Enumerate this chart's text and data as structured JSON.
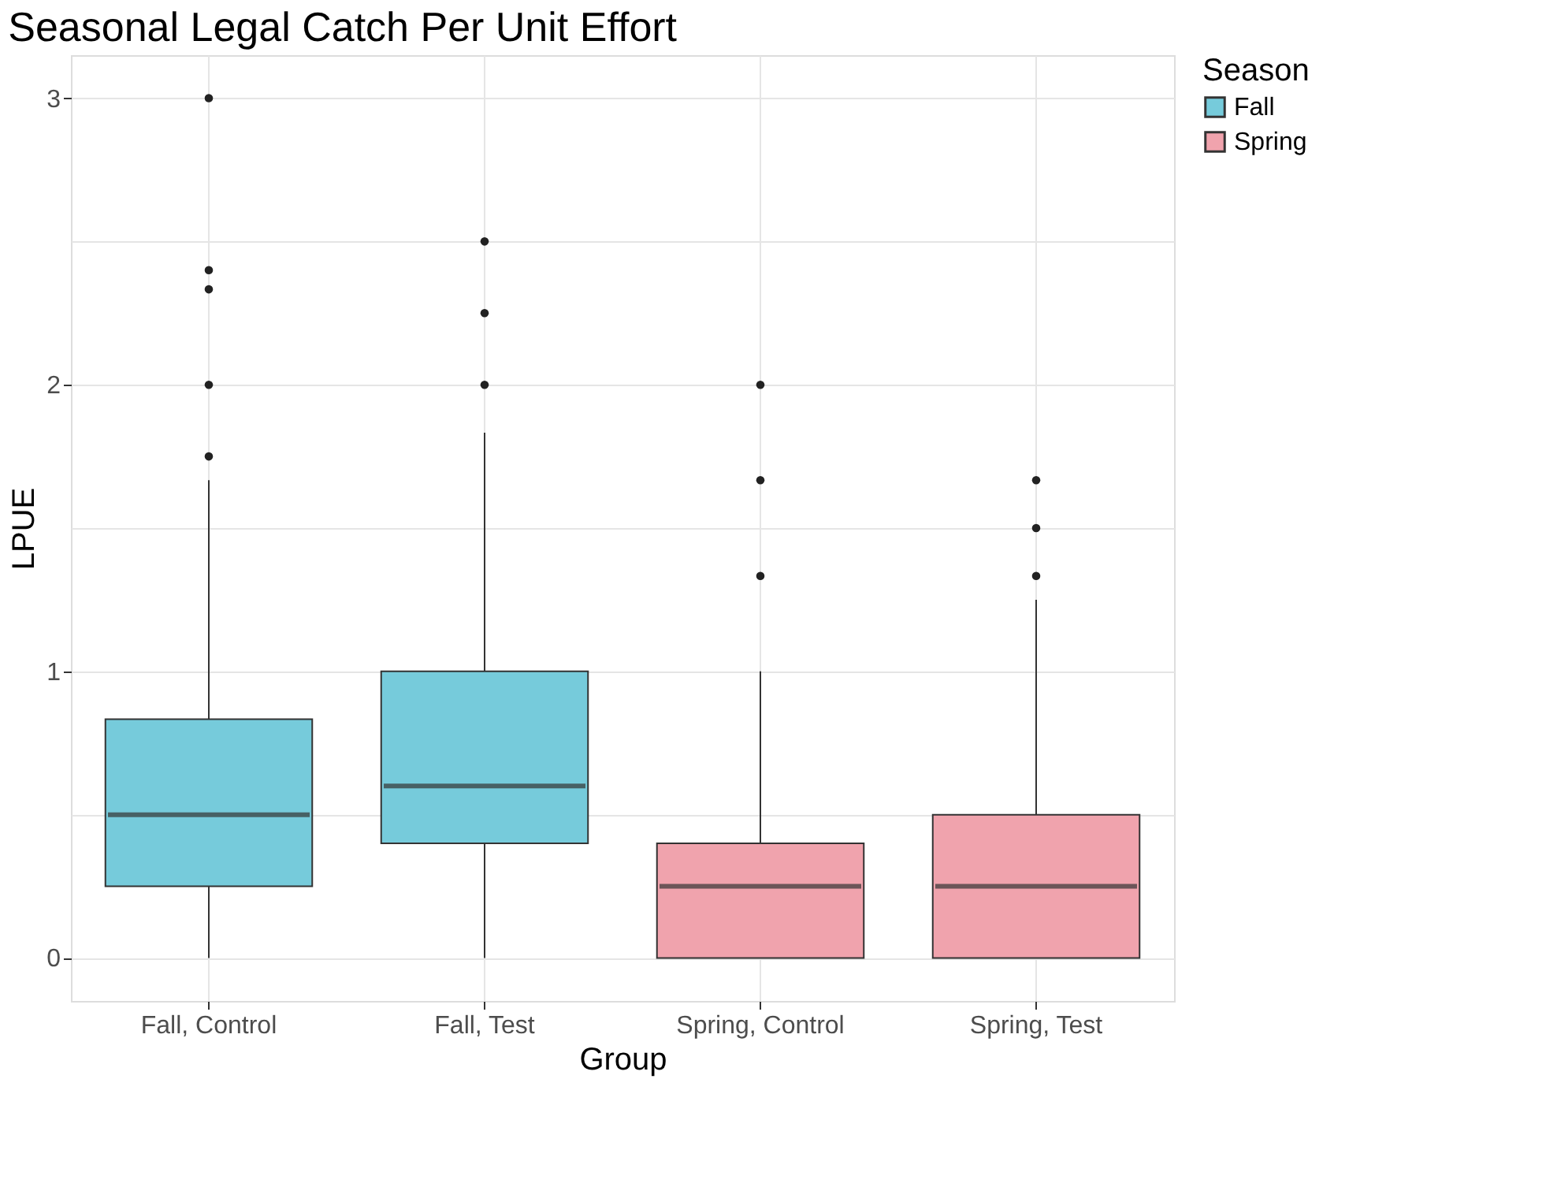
{
  "chart_data": {
    "type": "box",
    "title": "Seasonal Legal Catch Per Unit Effort",
    "xlabel": "Group",
    "ylabel": "LPUE",
    "legend_title": "Season",
    "categories": [
      "Fall, Control",
      "Fall, Test",
      "Spring, Control",
      "Spring, Test"
    ],
    "series": [
      {
        "name": "Fall",
        "color": "#76cbdb",
        "boxes": [
          {
            "low": 0,
            "q1": 0.25,
            "median": 0.5,
            "q3": 0.833,
            "high": 1.667,
            "outliers": [
              1.75,
              2.0,
              2.333,
              2.4,
              3.0
            ]
          },
          {
            "low": 0,
            "q1": 0.4,
            "median": 0.6,
            "q3": 1.0,
            "high": 1.833,
            "outliers": [
              2.0,
              2.25,
              2.5
            ]
          },
          null,
          null
        ]
      },
      {
        "name": "Spring",
        "color": "#f0a3ad",
        "boxes": [
          null,
          null,
          {
            "low": 0,
            "q1": 0,
            "median": 0.25,
            "q3": 0.4,
            "high": 1.0,
            "outliers": [
              1.333,
              1.667,
              2.0
            ]
          },
          {
            "low": 0,
            "q1": 0,
            "median": 0.25,
            "q3": 0.5,
            "high": 1.25,
            "outliers": [
              1.333,
              1.5,
              1.667
            ]
          }
        ]
      }
    ],
    "ylim": [
      -0.15,
      3.15
    ],
    "yticks": [
      0,
      {
        "value": 0.5,
        "label": null
      },
      1,
      {
        "value": 1.5,
        "label": null
      },
      2,
      {
        "value": 2.5,
        "label": null
      },
      3
    ],
    "grid": true,
    "legend": "right"
  }
}
